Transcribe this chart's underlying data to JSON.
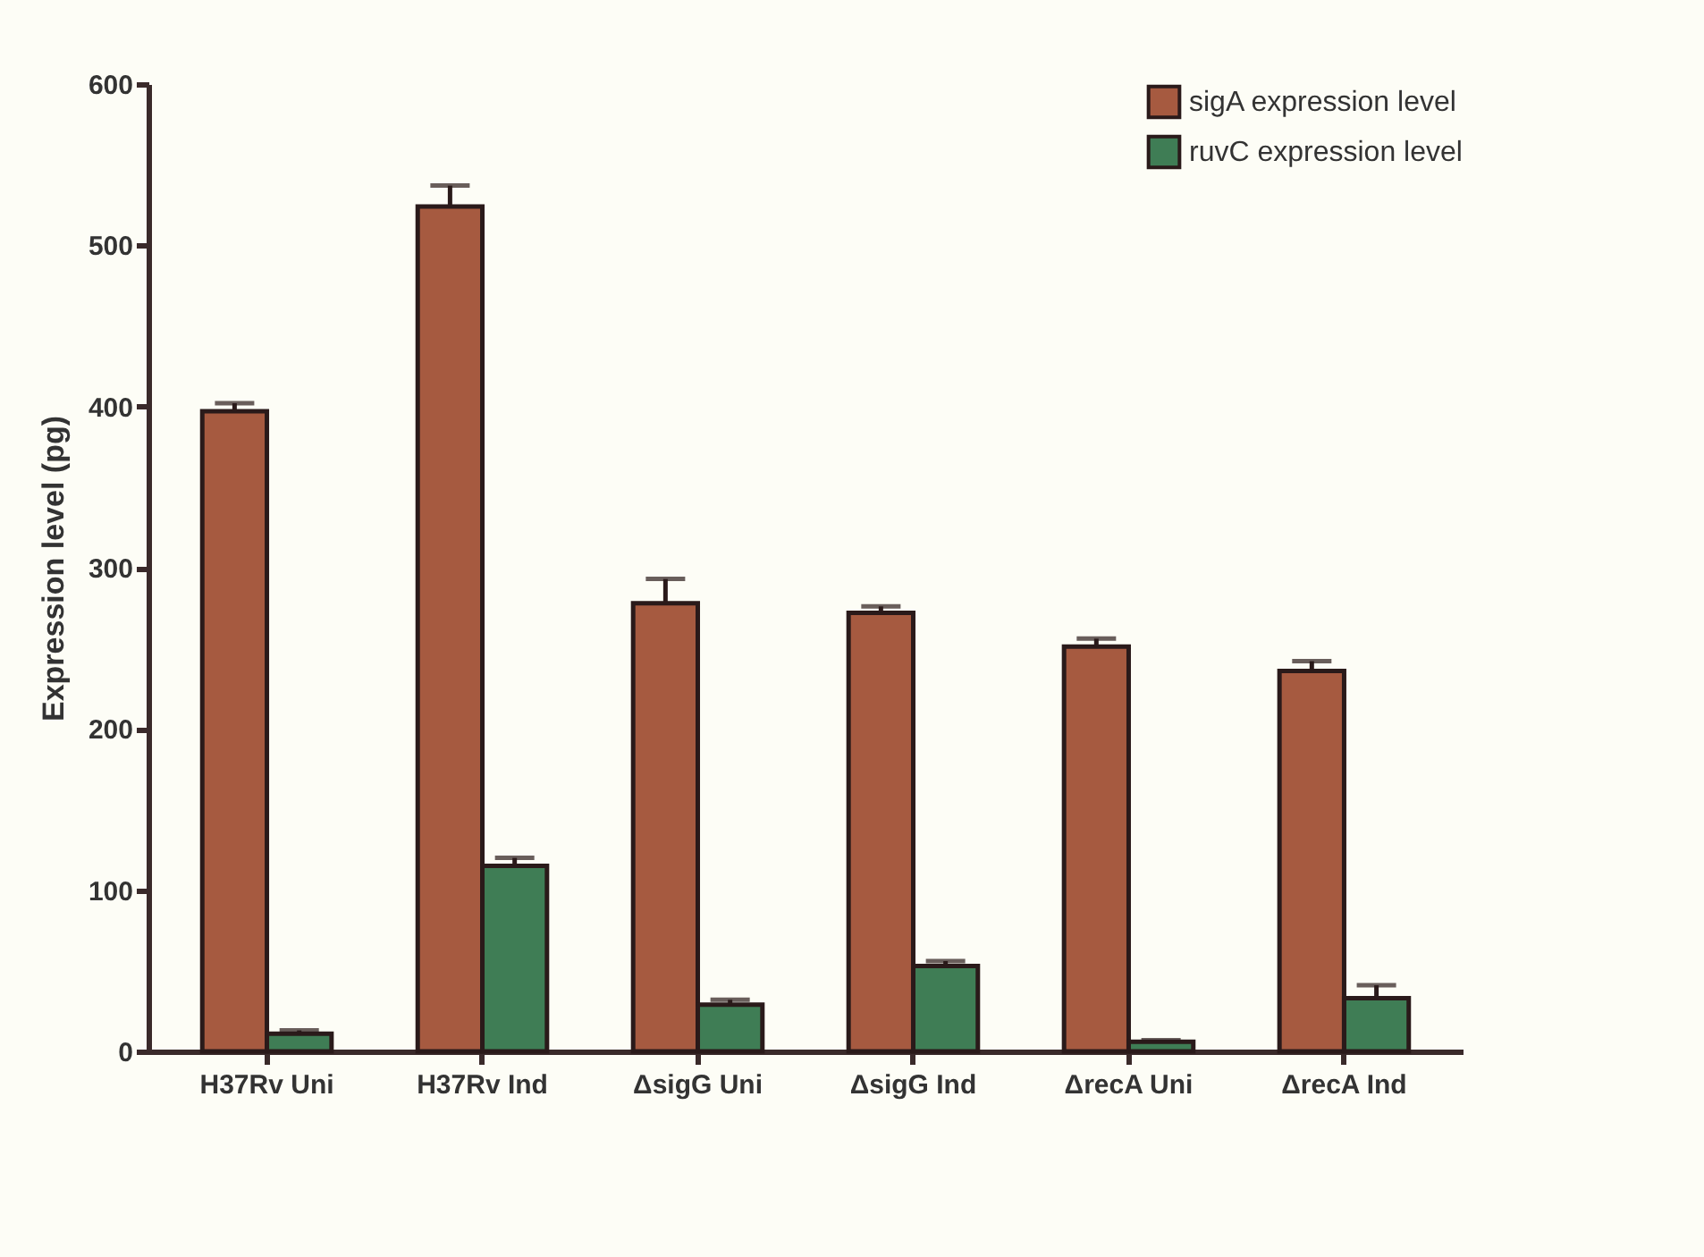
{
  "chart_data": {
    "type": "bar",
    "ylabel": "Expression level (pg)",
    "categories": [
      "H37Rv Uni",
      "H37Rv Ind",
      "ΔsigG Uni",
      "ΔsigG Ind",
      "ΔrecA Uni",
      "ΔrecA Ind"
    ],
    "series": [
      {
        "name": "sigA expression level",
        "color": "#a65a40",
        "values": [
          397,
          524,
          278,
          272,
          251,
          236
        ],
        "errors": [
          [
            397,
            402
          ],
          [
            524,
            537
          ],
          [
            278,
            293
          ],
          [
            272,
            276
          ],
          [
            251,
            256
          ],
          [
            236,
            242
          ]
        ]
      },
      {
        "name": "ruvC expression level",
        "color": "#3f7d55",
        "values": [
          11,
          115,
          29,
          53,
          6,
          33
        ],
        "errors": [
          [
            11,
            13
          ],
          [
            115,
            120
          ],
          [
            29,
            32
          ],
          [
            53,
            56
          ],
          [
            6,
            7
          ],
          [
            33,
            41
          ]
        ]
      }
    ],
    "ylim": [
      0,
      600
    ],
    "yticks": [
      0,
      100,
      200,
      300,
      400,
      500,
      600
    ],
    "grid": false,
    "legend": "top right"
  }
}
